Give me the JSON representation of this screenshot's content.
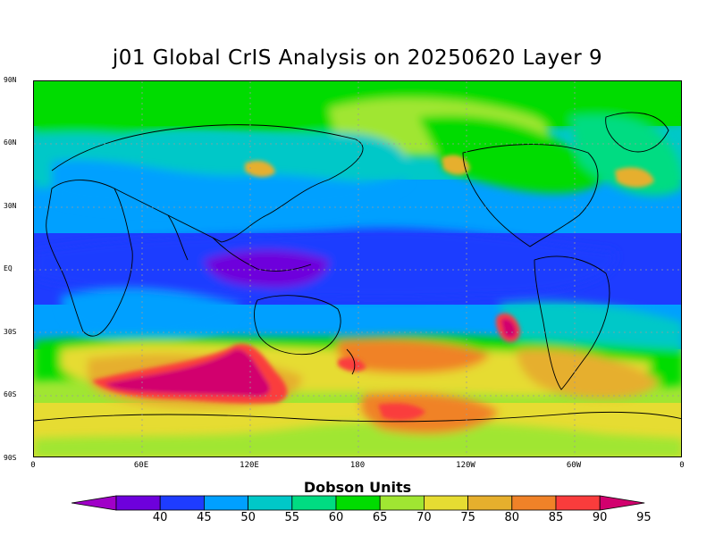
{
  "title": "j01 Global CrIS Analysis on 20250620 Layer 9",
  "lat_labels": [
    "90N",
    "60N",
    "30N",
    "EQ",
    "30S",
    "60S",
    "90S"
  ],
  "lon_labels": [
    "0",
    "60E",
    "120E",
    "180",
    "120W",
    "60W",
    "0"
  ],
  "colorbar": {
    "title": "Dobson Units",
    "levels": [
      "40",
      "45",
      "50",
      "55",
      "60",
      "65",
      "70",
      "75",
      "80",
      "85",
      "90",
      "95"
    ],
    "colors": [
      "#a000c8",
      "#6e00dc",
      "#1e3cff",
      "#00a0ff",
      "#00c8c8",
      "#00dc82",
      "#00dc00",
      "#a0e632",
      "#e6dc32",
      "#e6af2d",
      "#f08228",
      "#fa3c3c",
      "#d2006e"
    ]
  },
  "chart_data": {
    "type": "heatmap",
    "title": "j01 Global CrIS Analysis on 20250620 Layer 9",
    "x_ticks": [
      "0",
      "60E",
      "120E",
      "180",
      "120W",
      "60W",
      "0"
    ],
    "y_ticks": [
      "90N",
      "60N",
      "30N",
      "EQ",
      "30S",
      "60S",
      "90S"
    ],
    "colorbar_label": "Dobson Units",
    "colorbar_levels": [
      40,
      45,
      50,
      55,
      60,
      65,
      70,
      75,
      80,
      85,
      90,
      95
    ],
    "grid": true
  }
}
